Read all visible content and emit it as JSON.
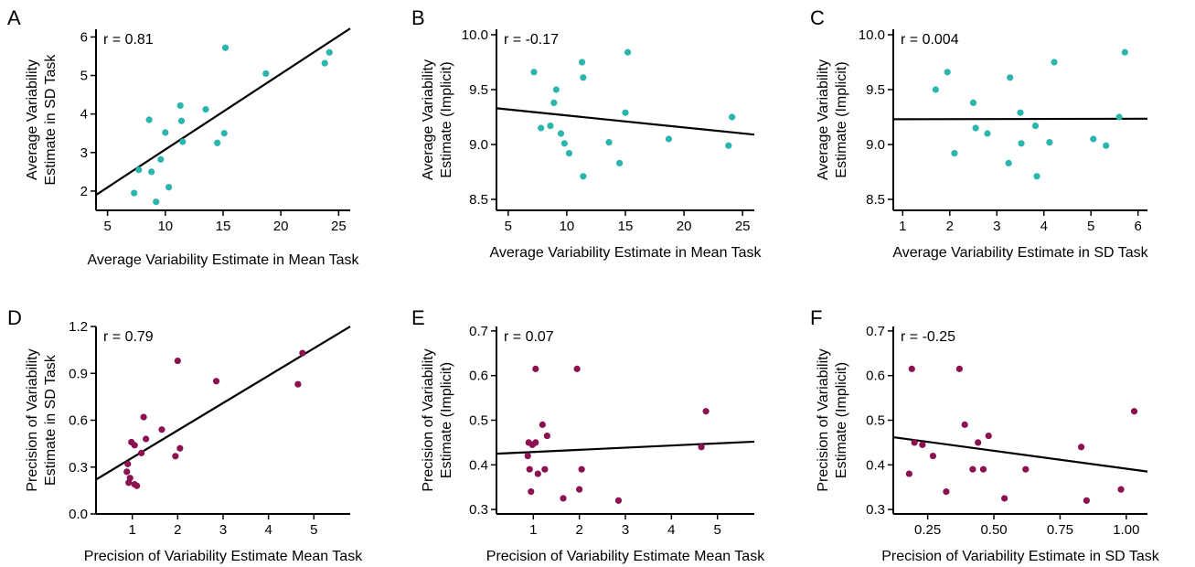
{
  "colors": {
    "teal": "#2bb5ad",
    "maroon": "#8b1150"
  },
  "chart_data": [
    {
      "type": "scatter",
      "letter": "A",
      "annotation": "r = 0.81",
      "xlabel": "Average Variability Estimate in Mean Task",
      "ylabel": [
        "Average Variability",
        "Estimate in SD Task"
      ],
      "xlim": [
        4,
        26
      ],
      "ylim": [
        1.5,
        6.2
      ],
      "xticks": [
        5,
        10,
        15,
        20,
        25
      ],
      "xtick_labels": [
        "5",
        "10",
        "15",
        "20",
        "25"
      ],
      "yticks": [
        2,
        3,
        4,
        5,
        6
      ],
      "ytick_labels": [
        "2",
        "3",
        "4",
        "5",
        "6"
      ],
      "color": "teal",
      "points": [
        [
          7.3,
          1.95
        ],
        [
          7.7,
          2.55
        ],
        [
          8.6,
          3.85
        ],
        [
          8.8,
          2.5
        ],
        [
          9.2,
          1.72
        ],
        [
          9.6,
          2.82
        ],
        [
          10.0,
          3.52
        ],
        [
          10.3,
          2.1
        ],
        [
          11.3,
          4.22
        ],
        [
          11.4,
          3.82
        ],
        [
          11.5,
          3.28
        ],
        [
          13.5,
          4.12
        ],
        [
          14.5,
          3.25
        ],
        [
          15.1,
          3.5
        ],
        [
          15.2,
          5.72
        ],
        [
          18.7,
          5.05
        ],
        [
          23.8,
          5.32
        ],
        [
          24.2,
          5.6
        ]
      ],
      "fit": [
        [
          4,
          1.9
        ],
        [
          26,
          6.22
        ]
      ]
    },
    {
      "type": "scatter",
      "letter": "B",
      "annotation": "r = -0.17",
      "xlabel": "Average Variability Estimate in Mean Task",
      "ylabel": [
        "Average Variability",
        "Estimate (Implicit)"
      ],
      "xlim": [
        4,
        26
      ],
      "ylim": [
        8.4,
        10.05
      ],
      "xticks": [
        5,
        10,
        15,
        20,
        25
      ],
      "xtick_labels": [
        "5",
        "10",
        "15",
        "20",
        "25"
      ],
      "yticks": [
        8.5,
        9.0,
        9.5,
        10.0
      ],
      "ytick_labels": [
        "8.5",
        "9.0",
        "9.5",
        "10.0"
      ],
      "color": "teal",
      "points": [
        [
          7.2,
          9.66
        ],
        [
          7.8,
          9.15
        ],
        [
          8.6,
          9.17
        ],
        [
          8.9,
          9.38
        ],
        [
          9.1,
          9.5
        ],
        [
          9.5,
          9.1
        ],
        [
          9.8,
          9.01
        ],
        [
          10.2,
          8.92
        ],
        [
          11.3,
          9.75
        ],
        [
          11.4,
          9.61
        ],
        [
          11.4,
          8.71
        ],
        [
          13.6,
          9.02
        ],
        [
          14.5,
          8.83
        ],
        [
          15.0,
          9.29
        ],
        [
          15.2,
          9.84
        ],
        [
          18.7,
          9.05
        ],
        [
          23.8,
          8.99
        ],
        [
          24.1,
          9.25
        ]
      ],
      "fit": [
        [
          4,
          9.33
        ],
        [
          26,
          9.09
        ]
      ]
    },
    {
      "type": "scatter",
      "letter": "C",
      "annotation": "r = 0.004",
      "xlabel": "Average Variability Estimate in SD Task",
      "ylabel": [
        "Average Variability",
        "Estimate (Implicit)"
      ],
      "xlim": [
        0.8,
        6.2
      ],
      "ylim": [
        8.4,
        10.05
      ],
      "xticks": [
        1,
        2,
        3,
        4,
        5,
        6
      ],
      "xtick_labels": [
        "1",
        "2",
        "3",
        "4",
        "5",
        "6"
      ],
      "yticks": [
        8.5,
        9.0,
        9.5,
        10.0
      ],
      "ytick_labels": [
        "8.5",
        "9.0",
        "9.5",
        "10.0"
      ],
      "color": "teal",
      "points": [
        [
          1.7,
          9.5
        ],
        [
          1.95,
          9.66
        ],
        [
          2.1,
          8.92
        ],
        [
          2.5,
          9.38
        ],
        [
          2.55,
          9.15
        ],
        [
          2.8,
          9.1
        ],
        [
          3.25,
          8.83
        ],
        [
          3.28,
          9.61
        ],
        [
          3.5,
          9.29
        ],
        [
          3.52,
          9.01
        ],
        [
          3.82,
          9.17
        ],
        [
          3.85,
          8.71
        ],
        [
          4.12,
          9.02
        ],
        [
          4.22,
          9.75
        ],
        [
          5.05,
          9.05
        ],
        [
          5.32,
          8.99
        ],
        [
          5.6,
          9.25
        ],
        [
          5.72,
          9.84
        ]
      ],
      "fit": [
        [
          0.8,
          9.23
        ],
        [
          6.2,
          9.235
        ]
      ]
    },
    {
      "type": "scatter",
      "letter": "D",
      "annotation": "r = 0.79",
      "xlabel": "Precision of Variability Estimate Mean Task",
      "ylabel": [
        "Precision of Variability",
        "Estimate in SD Task"
      ],
      "xlim": [
        0.2,
        5.8
      ],
      "ylim": [
        0.0,
        1.2
      ],
      "xticks": [
        1,
        2,
        3,
        4,
        5
      ],
      "xtick_labels": [
        "1",
        "2",
        "3",
        "4",
        "5"
      ],
      "yticks": [
        0.0,
        0.3,
        0.6,
        0.9,
        1.2
      ],
      "ytick_labels": [
        "0.0",
        "0.3",
        "0.6",
        "0.9",
        "1.2"
      ],
      "color": "maroon",
      "points": [
        [
          0.88,
          0.27
        ],
        [
          0.9,
          0.32
        ],
        [
          0.92,
          0.2
        ],
        [
          0.95,
          0.23
        ],
        [
          0.98,
          0.46
        ],
        [
          1.05,
          0.19
        ],
        [
          1.05,
          0.44
        ],
        [
          1.1,
          0.18
        ],
        [
          1.2,
          0.39
        ],
        [
          1.25,
          0.62
        ],
        [
          1.3,
          0.48
        ],
        [
          1.65,
          0.54
        ],
        [
          1.95,
          0.37
        ],
        [
          2.0,
          0.98
        ],
        [
          2.05,
          0.42
        ],
        [
          2.85,
          0.85
        ],
        [
          4.65,
          0.83
        ],
        [
          4.75,
          1.03
        ]
      ],
      "fit": [
        [
          0.2,
          0.22
        ],
        [
          5.8,
          1.2
        ]
      ]
    },
    {
      "type": "scatter",
      "letter": "E",
      "annotation": "r = 0.07",
      "xlabel": "Precision of Variability Estimate Mean Task",
      "ylabel": [
        "Precision of Variability",
        "Estimate (Implicit)"
      ],
      "xlim": [
        0.2,
        5.8
      ],
      "ylim": [
        0.29,
        0.71
      ],
      "xticks": [
        1,
        2,
        3,
        4,
        5
      ],
      "xtick_labels": [
        "1",
        "2",
        "3",
        "4",
        "5"
      ],
      "yticks": [
        0.3,
        0.4,
        0.5,
        0.6,
        0.7
      ],
      "ytick_labels": [
        "0.3",
        "0.4",
        "0.5",
        "0.6",
        "0.7"
      ],
      "color": "maroon",
      "points": [
        [
          0.88,
          0.42
        ],
        [
          0.9,
          0.45
        ],
        [
          0.92,
          0.39
        ],
        [
          0.95,
          0.34
        ],
        [
          0.98,
          0.445
        ],
        [
          1.05,
          0.615
        ],
        [
          1.05,
          0.45
        ],
        [
          1.1,
          0.38
        ],
        [
          1.2,
          0.49
        ],
        [
          1.25,
          0.39
        ],
        [
          1.3,
          0.465
        ],
        [
          1.65,
          0.325
        ],
        [
          1.95,
          0.615
        ],
        [
          2.0,
          0.345
        ],
        [
          2.05,
          0.39
        ],
        [
          2.85,
          0.32
        ],
        [
          4.65,
          0.44
        ],
        [
          4.75,
          0.52
        ]
      ],
      "fit": [
        [
          0.2,
          0.425
        ],
        [
          5.8,
          0.452
        ]
      ]
    },
    {
      "type": "scatter",
      "letter": "F",
      "annotation": "r = -0.25",
      "xlabel": "Precision of Variability Estimate in SD Task",
      "ylabel": [
        "Precision of Variability",
        "Estimate (Implicit)"
      ],
      "xlim": [
        0.12,
        1.08
      ],
      "ylim": [
        0.29,
        0.71
      ],
      "xticks": [
        0.25,
        0.5,
        0.75,
        1.0
      ],
      "xtick_labels": [
        "0.25",
        "0.50",
        "0.75",
        "1.00"
      ],
      "yticks": [
        0.3,
        0.4,
        0.5,
        0.6,
        0.7
      ],
      "ytick_labels": [
        "0.3",
        "0.4",
        "0.5",
        "0.6",
        "0.7"
      ],
      "color": "maroon",
      "points": [
        [
          0.18,
          0.38
        ],
        [
          0.19,
          0.615
        ],
        [
          0.2,
          0.45
        ],
        [
          0.23,
          0.445
        ],
        [
          0.27,
          0.42
        ],
        [
          0.32,
          0.34
        ],
        [
          0.37,
          0.615
        ],
        [
          0.39,
          0.49
        ],
        [
          0.42,
          0.39
        ],
        [
          0.44,
          0.45
        ],
        [
          0.46,
          0.39
        ],
        [
          0.48,
          0.465
        ],
        [
          0.54,
          0.325
        ],
        [
          0.62,
          0.39
        ],
        [
          0.83,
          0.44
        ],
        [
          0.85,
          0.32
        ],
        [
          0.98,
          0.345
        ],
        [
          1.03,
          0.52
        ]
      ],
      "fit": [
        [
          0.12,
          0.462
        ],
        [
          1.08,
          0.385
        ]
      ]
    }
  ]
}
